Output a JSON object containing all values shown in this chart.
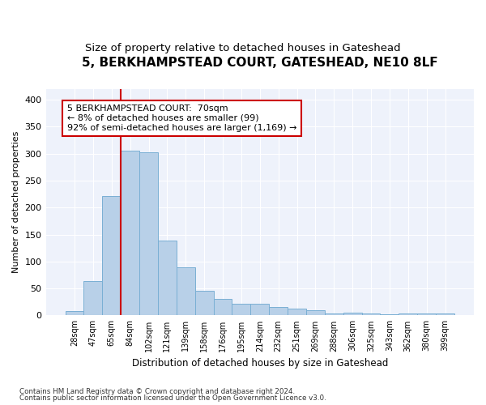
{
  "title1": "5, BERKHAMPSTEAD COURT, GATESHEAD, NE10 8LF",
  "title2": "Size of property relative to detached houses in Gateshead",
  "xlabel": "Distribution of detached houses by size in Gateshead",
  "ylabel": "Number of detached properties",
  "categories": [
    "28sqm",
    "47sqm",
    "65sqm",
    "84sqm",
    "102sqm",
    "121sqm",
    "139sqm",
    "158sqm",
    "176sqm",
    "195sqm",
    "214sqm",
    "232sqm",
    "251sqm",
    "269sqm",
    "288sqm",
    "306sqm",
    "325sqm",
    "343sqm",
    "362sqm",
    "380sqm",
    "399sqm"
  ],
  "values": [
    8,
    63,
    221,
    305,
    302,
    139,
    90,
    46,
    31,
    22,
    22,
    16,
    13,
    10,
    4,
    5,
    4,
    2,
    3,
    3,
    4
  ],
  "bar_color": "#b8d0e8",
  "bar_edge_color": "#7aafd4",
  "vline_color": "#cc0000",
  "annotation_text": "5 BERKHAMPSTEAD COURT:  70sqm\n← 8% of detached houses are smaller (99)\n92% of semi-detached houses are larger (1,169) →",
  "annotation_box_color": "#ffffff",
  "annotation_box_edge": "#cc0000",
  "ylim": [
    0,
    420
  ],
  "yticks": [
    0,
    50,
    100,
    150,
    200,
    250,
    300,
    350,
    400
  ],
  "footnote1": "Contains HM Land Registry data © Crown copyright and database right 2024.",
  "footnote2": "Contains public sector information licensed under the Open Government Licence v3.0.",
  "bg_color": "#ffffff",
  "plot_bg_color": "#eef2fb",
  "grid_color": "#ffffff",
  "title1_fontsize": 11,
  "title2_fontsize": 9.5
}
